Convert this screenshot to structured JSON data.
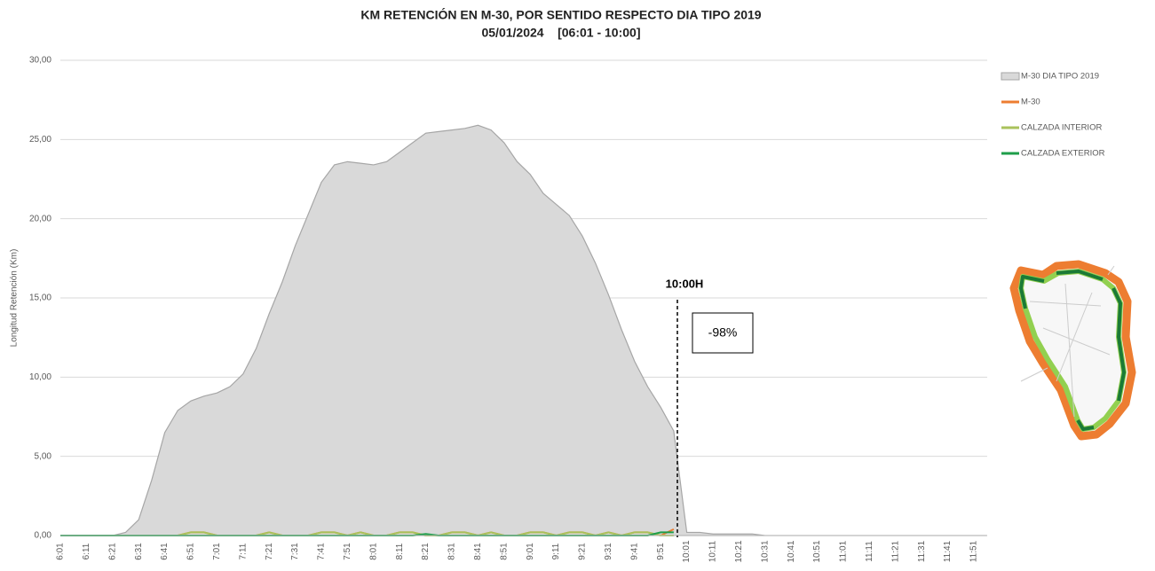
{
  "chart_data": {
    "type": "area-line",
    "title": "KM RETENCIÓN EN M-30, POR SENTIDO RESPECTO DIA TIPO 2019",
    "subtitle": "05/01/2024    [06:01 - 10:00]",
    "y_label": "Longitud Retención (Km)",
    "annotations": [
      "10:00H",
      "-98%"
    ],
    "categories": [
      "6:01",
      null,
      "6:11",
      null,
      "6:21",
      null,
      "6:31",
      null,
      "6:41",
      null,
      "6:51",
      null,
      "7:01",
      null,
      "7:11",
      null,
      "7:21",
      null,
      "7:31",
      null,
      "7:41",
      null,
      "7:51",
      null,
      "8:01",
      null,
      "8:11",
      null,
      "8:21",
      null,
      "8:31",
      null,
      "8:41",
      null,
      "8:51",
      null,
      "9:01",
      null,
      "9:11",
      null,
      "9:21",
      null,
      "9:31",
      null,
      "9:41",
      null,
      "9:51",
      null,
      "10:01",
      null,
      "10:11",
      null,
      "10:21",
      null,
      "10:31",
      null,
      "10:41",
      null,
      "10:51",
      null,
      "11:01",
      null,
      "11:11",
      null,
      "11:21",
      null,
      "11:31",
      null,
      "11:41",
      null,
      "11:51",
      null
    ],
    "series": [
      {
        "name": "M-30 DIA TIPO 2019",
        "color": "#d9d9d9",
        "kind": "area",
        "values": [
          0,
          0,
          0,
          0,
          0,
          0.2,
          1,
          3.5,
          6.5,
          7.9,
          8.5,
          8.8,
          9.0,
          9.4,
          10.2,
          11.8,
          14,
          16,
          18.3,
          20.3,
          22.3,
          23.4,
          23.6,
          23.5,
          23.4,
          23.6,
          24.2,
          24.8,
          25.4,
          25.5,
          25.6,
          25.7,
          25.9,
          25.6,
          24.8,
          23.6,
          22.8,
          21.6,
          20.9,
          20.2,
          18.9,
          17.2,
          15.2,
          13,
          11,
          9.4,
          8.1,
          6.6,
          0.2,
          0.2,
          0.1,
          0.1,
          0.1,
          0.1,
          0,
          0,
          0,
          0,
          0,
          0,
          0,
          0,
          0,
          0,
          0,
          0,
          0,
          0,
          0,
          0,
          0,
          0
        ]
      },
      {
        "name": "M-30",
        "color": "#ed7d31",
        "kind": "line",
        "values": [
          0,
          0,
          0,
          0,
          0,
          0,
          0,
          0,
          0,
          0,
          0.2,
          0.2,
          0,
          0,
          0,
          0,
          0.2,
          0,
          0,
          0,
          0.2,
          0.2,
          0,
          0.2,
          0,
          0,
          0.2,
          0.2,
          0,
          0,
          0.2,
          0.2,
          0,
          0.2,
          0,
          0,
          0.2,
          0.2,
          0,
          0.2,
          0.2,
          0,
          0.2,
          0,
          0.2,
          0.2,
          0,
          0.4,
          null,
          null,
          null,
          null,
          null,
          null,
          null,
          null,
          null,
          null,
          null,
          null,
          null,
          null,
          null,
          null,
          null,
          null,
          null,
          null,
          null,
          null,
          null,
          null
        ]
      },
      {
        "name": "CALZADA INTERIOR",
        "color": "#a9c25b",
        "kind": "line",
        "values": [
          0,
          0,
          0,
          0,
          0,
          0,
          0,
          0,
          0,
          0,
          0.2,
          0.2,
          0,
          0,
          0,
          0,
          0.2,
          0,
          0,
          0,
          0.2,
          0.2,
          0,
          0.2,
          0,
          0,
          0.2,
          0.2,
          0,
          0,
          0.2,
          0.2,
          0,
          0.2,
          0,
          0,
          0.2,
          0.2,
          0,
          0.2,
          0.2,
          0,
          0.2,
          0,
          0.2,
          0.2,
          0,
          0,
          null,
          null,
          null,
          null,
          null,
          null,
          null,
          null,
          null,
          null,
          null,
          null,
          null,
          null,
          null,
          null,
          null,
          null,
          null,
          null,
          null,
          null,
          null,
          null
        ]
      },
      {
        "name": "CALZADA EXTERIOR",
        "color": "#1e9e4a",
        "kind": "line",
        "values": [
          0,
          0,
          0,
          0,
          0,
          0,
          0,
          0,
          0,
          0,
          0,
          0,
          0,
          0,
          0,
          0,
          0,
          0,
          0,
          0,
          0,
          0,
          0,
          0,
          0,
          0,
          0,
          0,
          0.1,
          0,
          0,
          0,
          0,
          0,
          0,
          0,
          0,
          0,
          0,
          0,
          0,
          0,
          0,
          0,
          0,
          0,
          0.2,
          0.2,
          null,
          null,
          null,
          null,
          null,
          null,
          null,
          null,
          null,
          null,
          null,
          null,
          null,
          null,
          null,
          null,
          null,
          null,
          null,
          null,
          null,
          null,
          null,
          null
        ]
      }
    ],
    "ylim": [
      0,
      30
    ],
    "yticks": [
      {
        "value": 0,
        "label": "0,00"
      },
      {
        "value": 5,
        "label": "5,00"
      },
      {
        "value": 10,
        "label": "10,00"
      },
      {
        "value": 15,
        "label": "15,00"
      },
      {
        "value": 20,
        "label": "20,00"
      },
      {
        "value": 25,
        "label": "25,00"
      },
      {
        "value": 30,
        "label": "30,00"
      }
    ],
    "grid": true
  }
}
